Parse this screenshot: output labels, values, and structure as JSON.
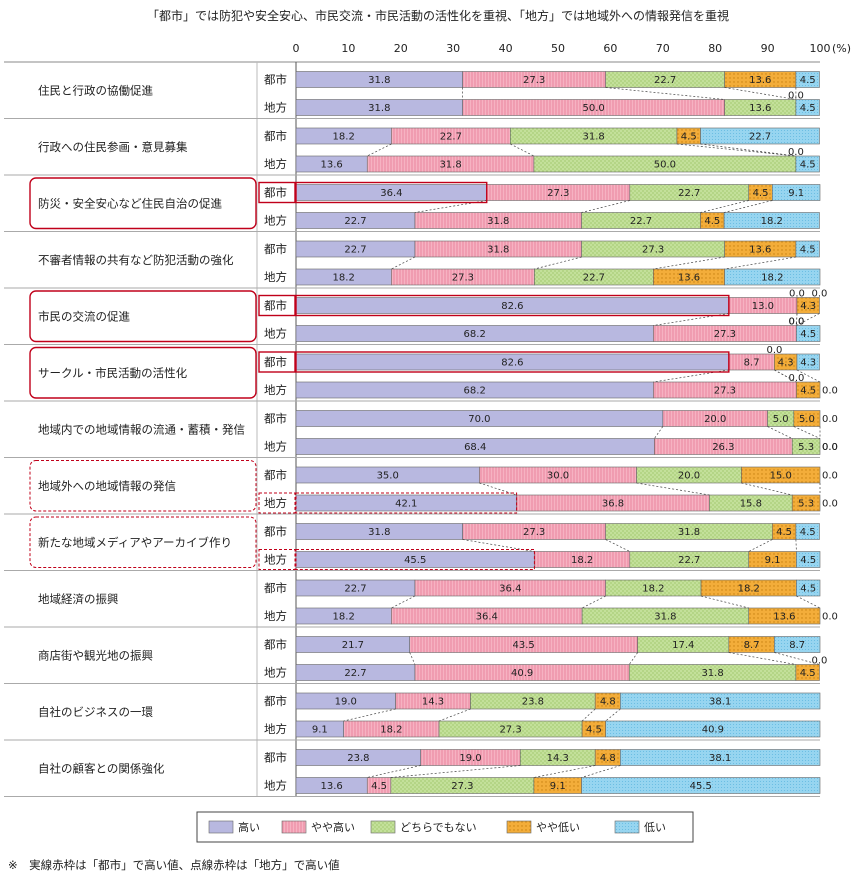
{
  "chart_data": {
    "type": "bar",
    "orientation": "horizontal-stacked-100",
    "title": "「都市」では防犯や安全安心、市民交流・市民活動の活性化を重視、「地方」では地域外への情報発信を重視",
    "axis": {
      "ticks": [
        "0",
        "10",
        "20",
        "30",
        "40",
        "50",
        "60",
        "70",
        "80",
        "90",
        "100"
      ],
      "unit": "(%)",
      "xlim": [
        0,
        100
      ]
    },
    "groups": [
      "都市",
      "地方"
    ],
    "series": [
      {
        "name": "高い",
        "color": "#b8b8e0"
      },
      {
        "name": "やや高い",
        "color": "#f4a6b8"
      },
      {
        "name": "どちらでもない",
        "color": "#bcdb8e"
      },
      {
        "name": "やや低い",
        "color": "#f0a630"
      },
      {
        "name": "低い",
        "color": "#8ed0ee"
      }
    ],
    "categories": [
      {
        "label": "住民と行政の協働促進",
        "rows": [
          {
            "group": "都市",
            "values": [
              31.8,
              27.3,
              22.7,
              13.6,
              4.5
            ]
          },
          {
            "group": "地方",
            "values": [
              31.8,
              50.0,
              13.6,
              0.0,
              4.5
            ]
          }
        ]
      },
      {
        "label": "行政への住民参画・意見募集",
        "rows": [
          {
            "group": "都市",
            "values": [
              18.2,
              22.7,
              31.8,
              4.5,
              22.7
            ]
          },
          {
            "group": "地方",
            "values": [
              13.6,
              31.8,
              50.0,
              0.0,
              4.5
            ]
          }
        ]
      },
      {
        "label": "防災・安全安心など住民自治の促進",
        "rows": [
          {
            "group": "都市",
            "values": [
              36.4,
              27.3,
              22.7,
              4.5,
              9.1
            ]
          },
          {
            "group": "地方",
            "values": [
              22.7,
              31.8,
              22.7,
              4.5,
              18.2
            ]
          }
        ]
      },
      {
        "label": "不審者情報の共有など防犯活動の強化",
        "rows": [
          {
            "group": "都市",
            "values": [
              22.7,
              31.8,
              27.3,
              13.6,
              4.5
            ]
          },
          {
            "group": "地方",
            "values": [
              18.2,
              27.3,
              22.7,
              13.6,
              18.2
            ]
          }
        ]
      },
      {
        "label": "市民の交流の促進",
        "rows": [
          {
            "group": "都市",
            "values": [
              82.6,
              13.0,
              0.0,
              4.3,
              0.0
            ]
          },
          {
            "group": "地方",
            "values": [
              68.2,
              27.3,
              0.0,
              0.0,
              4.5
            ]
          }
        ]
      },
      {
        "label": "サークル・市民活動の活性化",
        "rows": [
          {
            "group": "都市",
            "values": [
              82.6,
              8.7,
              0.0,
              4.3,
              4.3
            ]
          },
          {
            "group": "地方",
            "values": [
              68.2,
              27.3,
              0.0,
              4.5,
              0.0
            ]
          }
        ]
      },
      {
        "label": "地域内での地域情報の流通・蓄積・発信",
        "rows": [
          {
            "group": "都市",
            "values": [
              70.0,
              20.0,
              5.0,
              5.0,
              0.0
            ]
          },
          {
            "group": "地方",
            "values": [
              68.4,
              26.3,
              5.3,
              0.0,
              0.0
            ]
          }
        ]
      },
      {
        "label": "地域外への地域情報の発信",
        "rows": [
          {
            "group": "都市",
            "values": [
              35.0,
              30.0,
              20.0,
              15.0,
              0.0
            ]
          },
          {
            "group": "地方",
            "values": [
              42.1,
              36.8,
              15.8,
              5.3,
              0.0
            ]
          }
        ]
      },
      {
        "label": "新たな地域メディアやアーカイブ作り",
        "rows": [
          {
            "group": "都市",
            "values": [
              31.8,
              27.3,
              31.8,
              4.5,
              4.5
            ]
          },
          {
            "group": "地方",
            "values": [
              45.5,
              18.2,
              22.7,
              9.1,
              4.5
            ]
          }
        ]
      },
      {
        "label": "地域経済の振興",
        "rows": [
          {
            "group": "都市",
            "values": [
              22.7,
              36.4,
              18.2,
              18.2,
              4.5
            ]
          },
          {
            "group": "地方",
            "values": [
              18.2,
              36.4,
              31.8,
              13.6,
              0.0
            ]
          }
        ]
      },
      {
        "label": "商店街や観光地の振興",
        "rows": [
          {
            "group": "都市",
            "values": [
              21.7,
              43.5,
              17.4,
              8.7,
              8.7
            ]
          },
          {
            "group": "地方",
            "values": [
              22.7,
              40.9,
              31.8,
              4.5,
              0.0
            ]
          }
        ]
      },
      {
        "label": "自社のビジネスの一環",
        "rows": [
          {
            "group": "都市",
            "values": [
              19.0,
              14.3,
              23.8,
              4.8,
              38.1
            ]
          },
          {
            "group": "地方",
            "values": [
              9.1,
              18.2,
              27.3,
              4.5,
              40.9
            ]
          }
        ]
      },
      {
        "label": "自社の顧客との関係強化",
        "rows": [
          {
            "group": "都市",
            "values": [
              23.8,
              19.0,
              14.3,
              4.8,
              38.1
            ]
          },
          {
            "group": "地方",
            "values": [
              13.6,
              4.5,
              27.3,
              9.1,
              45.5
            ]
          }
        ]
      }
    ],
    "highlights": {
      "solid": [
        "防災・安全安心など住民自治の促進",
        "市民の交流の促進",
        "サークル・市民活動の活性化"
      ],
      "dashed": [
        "地域外への地域情報の発信",
        "新たな地域メディアやアーカイブ作り"
      ]
    },
    "note": "※　実線赤枠は「都市」で高い値、点線赤枠は「地方」で高い値"
  }
}
